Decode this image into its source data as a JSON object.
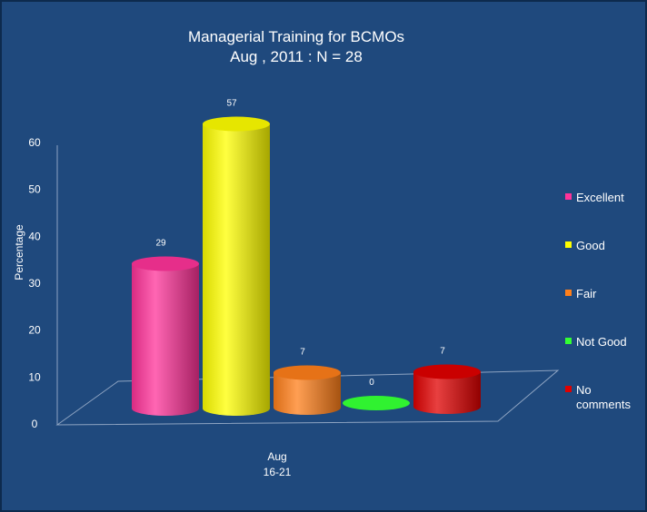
{
  "chart_data": {
    "type": "bar",
    "title": "Managerial Training for  BCMOs",
    "subtitle": "Aug , 2011 : N = 28",
    "ylabel": "Percentage",
    "ylim": [
      0,
      60
    ],
    "yticks": [
      "0",
      "10",
      "20",
      "30",
      "40",
      "50",
      "60"
    ],
    "category_label_line1": "Aug",
    "category_label_line2": "16-21",
    "series": [
      {
        "name": "Excellent",
        "value": 29,
        "label": "29",
        "color": "#ff3399"
      },
      {
        "name": "Good",
        "value": 57,
        "label": "57",
        "color": "#ffff00"
      },
      {
        "name": "Fair",
        "value": 7,
        "label": "7",
        "color": "#ff7f1a"
      },
      {
        "name": "Not Good",
        "value": 0,
        "label": "0",
        "color": "#33ff33"
      },
      {
        "name": "No comments",
        "value": 7,
        "label": "7",
        "color": "#e00000"
      }
    ],
    "legend_position": "right",
    "style": "3d-cylinder",
    "background": "#1f497d"
  }
}
